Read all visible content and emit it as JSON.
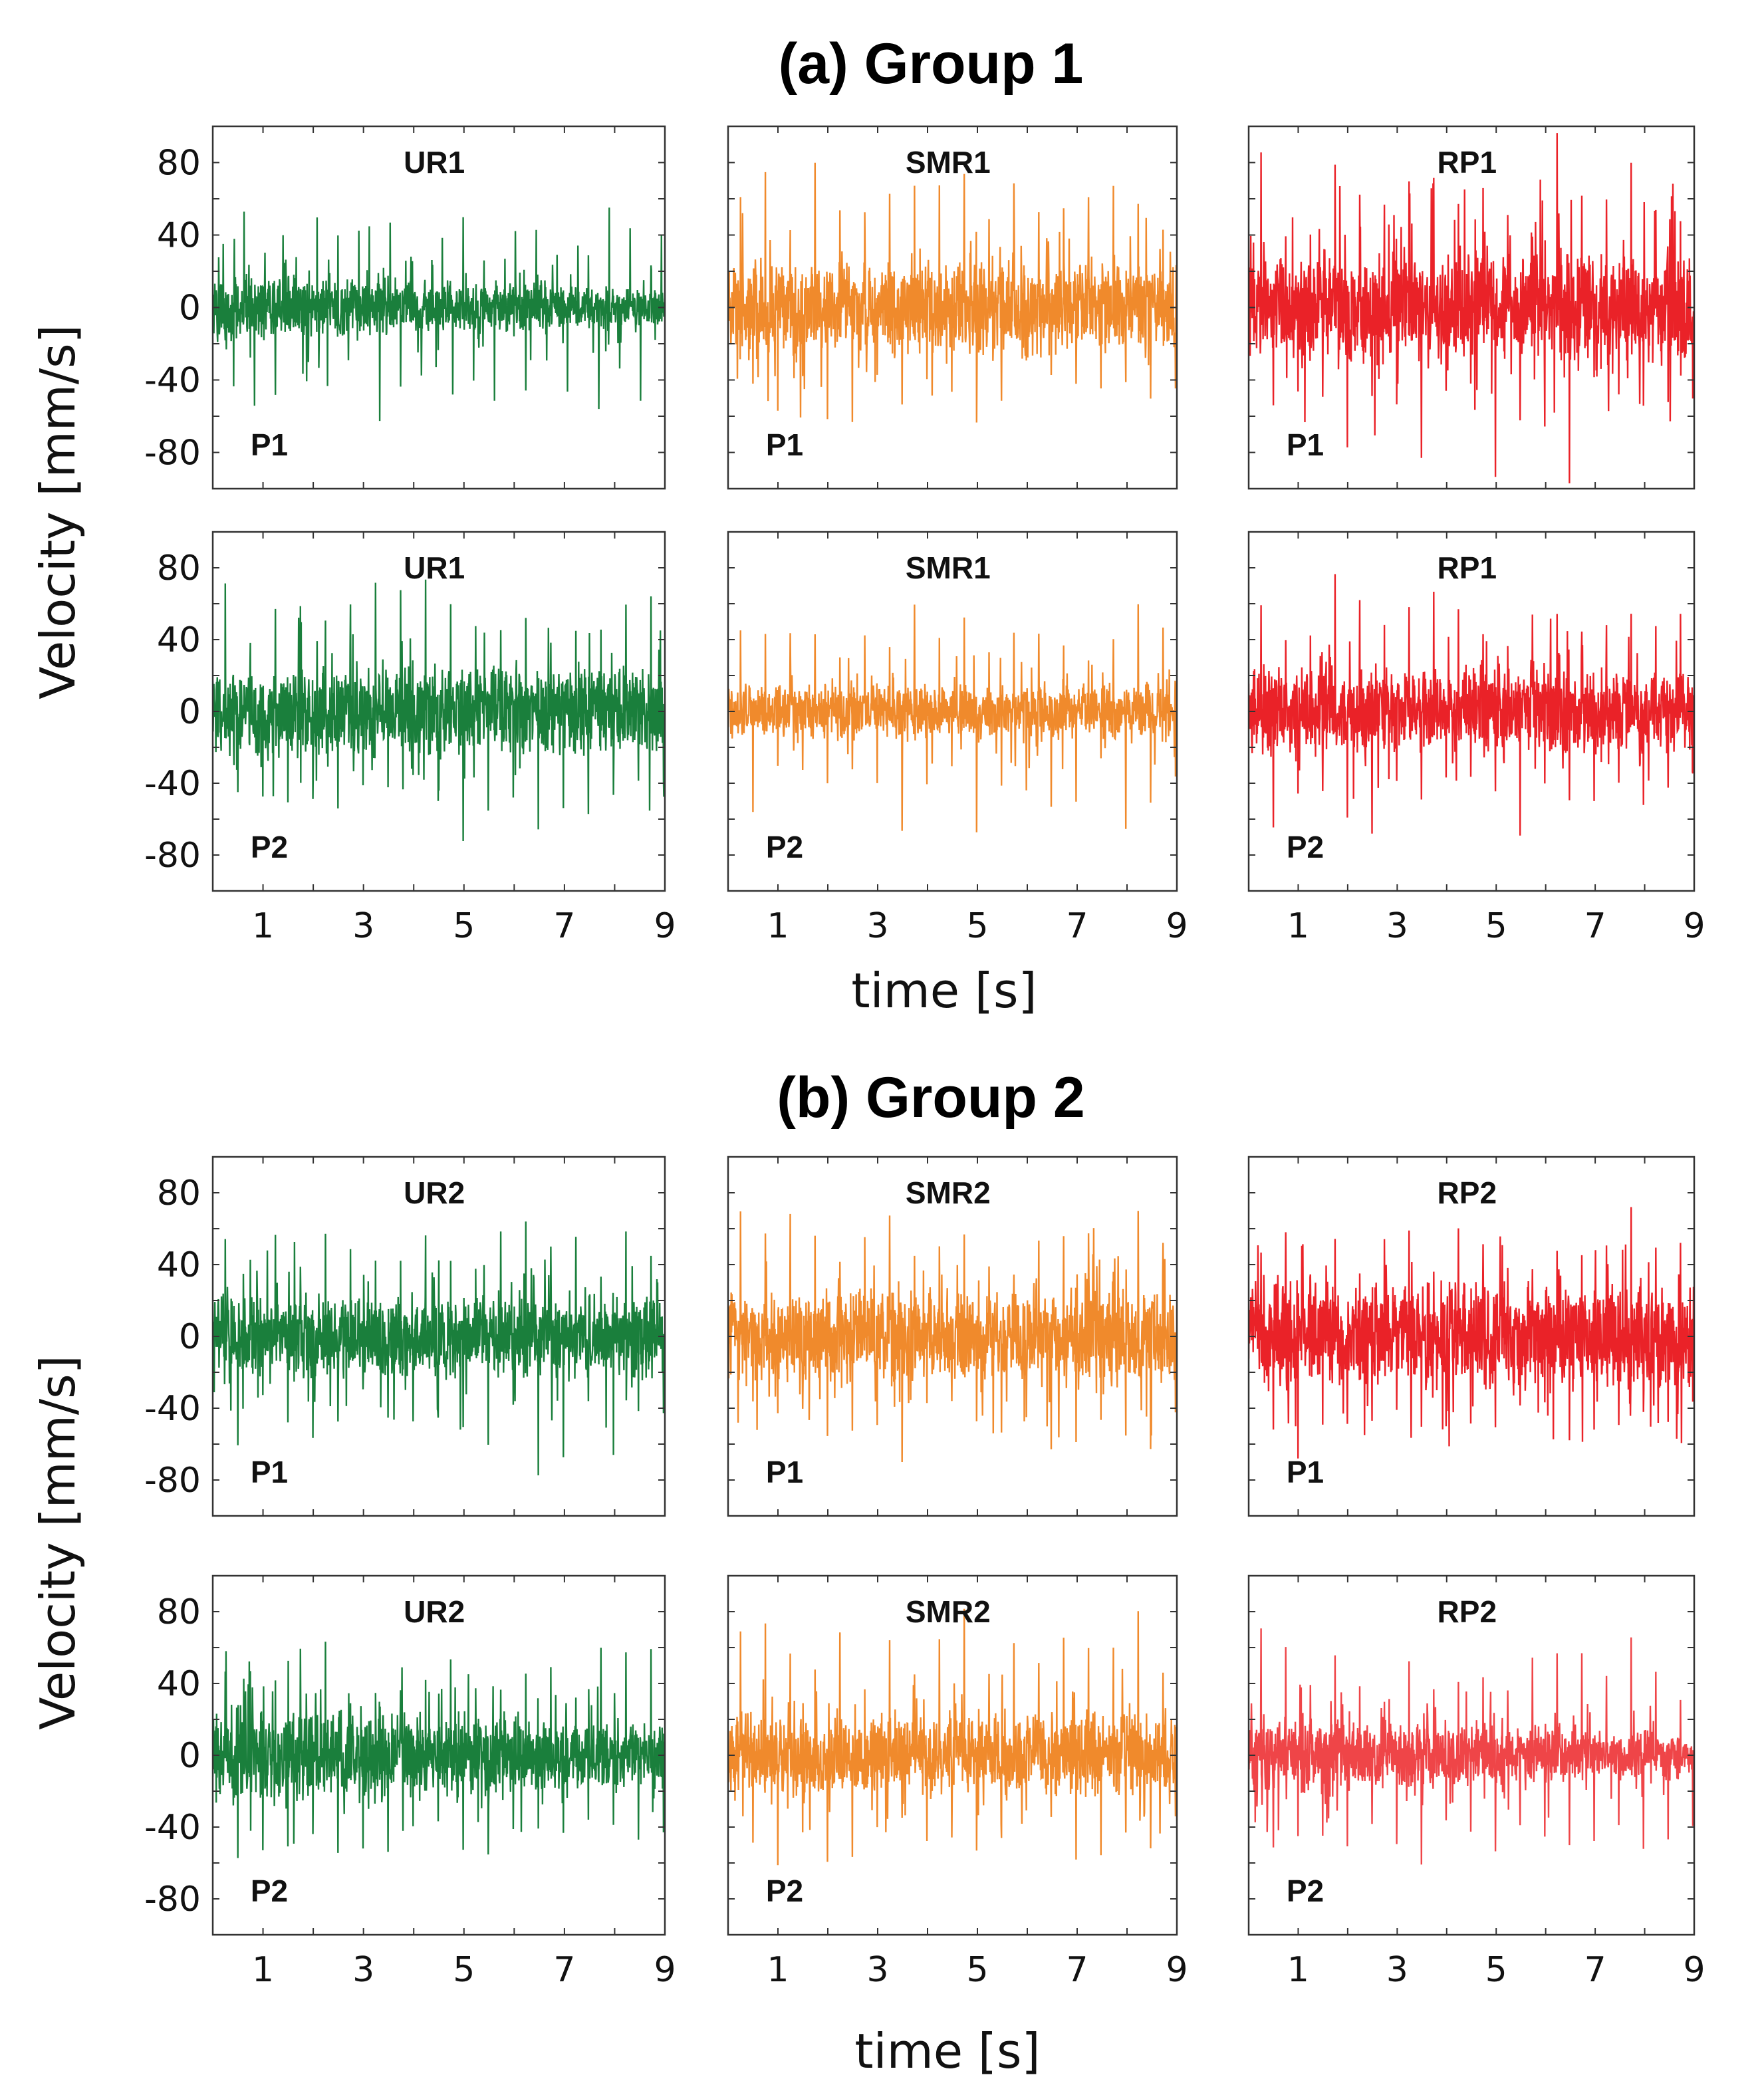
{
  "groups": [
    {
      "header": "(a) Group 1",
      "ylabel": "Velocity [mm/s]",
      "xlabel": "time [s]"
    },
    {
      "header": "(b) Group 2",
      "ylabel": "Velocity [mm/s]",
      "xlabel": "time [s]"
    }
  ],
  "colors": {
    "UR": "#1a7f3c",
    "SMR": "#f08a2c",
    "RP": "#ea2228",
    "RP_light": "#ef4548"
  },
  "chart_data": [
    {
      "type": "line",
      "group": 1,
      "row": 1,
      "col": 1,
      "title": "UR1",
      "position_label": "P1",
      "color": "#1a7f3c",
      "amplitude": {
        "body": 13,
        "spikes": [
          55,
          -65,
          60,
          -55,
          50,
          -52,
          48
        ],
        "envelope": "decaying"
      },
      "xlim": [
        0,
        9
      ],
      "ylim": [
        -100,
        100
      ],
      "xticks": [
        1,
        3,
        5,
        7,
        9
      ],
      "yticks": [
        80,
        40,
        0,
        -40,
        -80
      ]
    },
    {
      "type": "line",
      "group": 1,
      "row": 1,
      "col": 2,
      "title": "SMR1",
      "position_label": "P1",
      "color": "#f08a2c",
      "amplitude": {
        "body": 20,
        "spikes": [
          80,
          -70,
          75,
          -65,
          70,
          -60
        ],
        "envelope": "flat"
      },
      "xlim": [
        0,
        9
      ],
      "ylim": [
        -100,
        100
      ],
      "xticks": [
        1,
        3,
        5,
        7,
        9
      ],
      "yticks": [
        80,
        40,
        0,
        -40,
        -80
      ]
    },
    {
      "type": "line",
      "group": 1,
      "row": 1,
      "col": 3,
      "title": "RP1",
      "position_label": "P1",
      "color": "#ea2228",
      "amplitude": {
        "body": 25,
        "spikes": [
          100,
          -100,
          78,
          -70,
          75,
          -68
        ],
        "envelope": "flat"
      },
      "xlim": [
        0,
        9
      ],
      "ylim": [
        -100,
        100
      ],
      "xticks": [
        1,
        3,
        5,
        7,
        9
      ],
      "yticks": [
        80,
        40,
        0,
        -40,
        -80
      ]
    },
    {
      "type": "line",
      "group": 1,
      "row": 2,
      "col": 1,
      "title": "UR1",
      "position_label": "P2",
      "color": "#1a7f3c",
      "amplitude": {
        "body": 20,
        "spikes": [
          75,
          -75,
          72,
          -70,
          78,
          -65
        ],
        "envelope": "flat"
      },
      "xlim": [
        0,
        9
      ],
      "ylim": [
        -100,
        100
      ],
      "xticks": [
        1,
        3,
        5,
        7,
        9
      ],
      "yticks": [
        80,
        40,
        0,
        -40,
        -80
      ]
    },
    {
      "type": "line",
      "group": 1,
      "row": 2,
      "col": 2,
      "title": "SMR1",
      "position_label": "P2",
      "color": "#f08a2c",
      "amplitude": {
        "body": 12,
        "spikes": [
          70,
          -68,
          62,
          -60,
          55,
          -50
        ],
        "envelope": "flat"
      },
      "xlim": [
        0,
        9
      ],
      "ylim": [
        -100,
        100
      ],
      "xticks": [
        1,
        3,
        5,
        7,
        9
      ],
      "yticks": [
        80,
        40,
        0,
        -40,
        -80
      ]
    },
    {
      "type": "line",
      "group": 1,
      "row": 2,
      "col": 3,
      "title": "RP1",
      "position_label": "P2",
      "color": "#ea2228",
      "amplitude": {
        "body": 18,
        "spikes": [
          80,
          -72,
          68,
          -70,
          62,
          -60
        ],
        "envelope": "flat"
      },
      "xlim": [
        0,
        9
      ],
      "ylim": [
        -100,
        100
      ],
      "xticks": [
        1,
        3,
        5,
        7,
        9
      ],
      "yticks": [
        80,
        40,
        0,
        -40,
        -80
      ]
    },
    {
      "type": "line",
      "group": 2,
      "row": 1,
      "col": 1,
      "title": "UR2",
      "position_label": "P1",
      "color": "#1a7f3c",
      "amplitude": {
        "body": 18,
        "spikes": [
          65,
          -78,
          70,
          -68,
          62,
          -60
        ],
        "envelope": "flat"
      },
      "xlim": [
        0,
        9
      ],
      "ylim": [
        -100,
        100
      ],
      "xticks": [
        1,
        3,
        5,
        7,
        9
      ],
      "yticks": [
        80,
        40,
        0,
        -40,
        -80
      ]
    },
    {
      "type": "line",
      "group": 2,
      "row": 1,
      "col": 2,
      "title": "SMR2",
      "position_label": "P1",
      "color": "#f08a2c",
      "amplitude": {
        "body": 20,
        "spikes": [
          75,
          -70,
          72,
          -68,
          70,
          -60
        ],
        "envelope": "flat"
      },
      "xlim": [
        0,
        9
      ],
      "ylim": [
        -100,
        100
      ],
      "xticks": [
        1,
        3,
        5,
        7,
        9
      ],
      "yticks": [
        80,
        40,
        0,
        -40,
        -80
      ]
    },
    {
      "type": "line",
      "group": 2,
      "row": 1,
      "col": 3,
      "title": "RP2",
      "position_label": "P1",
      "color": "#ea2228",
      "amplitude": {
        "body": 24,
        "spikes": [
          75,
          -72,
          70,
          -70,
          68,
          -65
        ],
        "envelope": "flat"
      },
      "xlim": [
        0,
        9
      ],
      "ylim": [
        -100,
        100
      ],
      "xticks": [
        1,
        3,
        5,
        7,
        9
      ],
      "yticks": [
        80,
        40,
        0,
        -40,
        -80
      ]
    },
    {
      "type": "line",
      "group": 2,
      "row": 2,
      "col": 1,
      "title": "UR2",
      "position_label": "P2",
      "color": "#1a7f3c",
      "amplitude": {
        "body": 20,
        "spikes": [
          65,
          -72,
          68,
          -70,
          60,
          -62
        ],
        "envelope": "decaying"
      },
      "xlim": [
        0,
        9
      ],
      "ylim": [
        -100,
        100
      ],
      "xticks": [
        1,
        3,
        5,
        7,
        9
      ],
      "yticks": [
        80,
        40,
        0,
        -40,
        -80
      ]
    },
    {
      "type": "line",
      "group": 2,
      "row": 2,
      "col": 2,
      "title": "SMR2",
      "position_label": "P2",
      "color": "#f08a2c",
      "amplitude": {
        "body": 18,
        "spikes": [
          85,
          -70,
          82,
          -65,
          75,
          -62
        ],
        "envelope": "flat"
      },
      "xlim": [
        0,
        9
      ],
      "ylim": [
        -100,
        100
      ],
      "xticks": [
        1,
        3,
        5,
        7,
        9
      ],
      "yticks": [
        80,
        40,
        0,
        -40,
        -80
      ]
    },
    {
      "type": "line",
      "group": 2,
      "row": 2,
      "col": 3,
      "title": "RP2",
      "position_label": "P2",
      "color": "#ef4548",
      "amplitude": {
        "body": 15,
        "spikes": [
          78,
          -68,
          65,
          -62,
          60,
          -58
        ],
        "envelope": "decaying"
      },
      "xlim": [
        0,
        9
      ],
      "ylim": [
        -100,
        100
      ],
      "xticks": [
        1,
        3,
        5,
        7,
        9
      ],
      "yticks": [
        80,
        40,
        0,
        -40,
        -80
      ]
    }
  ]
}
